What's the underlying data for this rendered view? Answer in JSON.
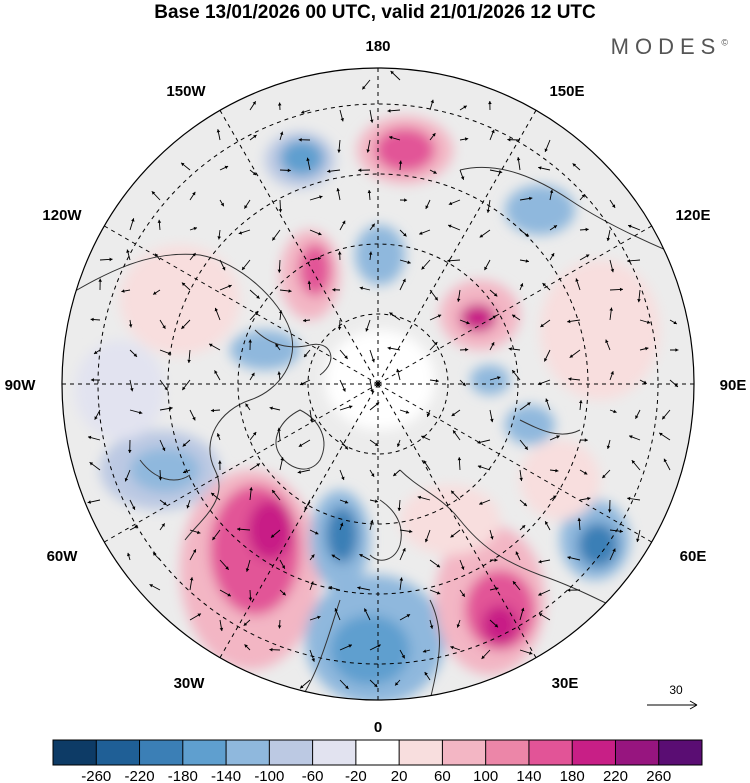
{
  "title": "Base 13/01/2026 00 UTC, valid 21/01/2026 12 UTC",
  "brand": "MODES",
  "brand_mark": "©",
  "longitude_labels": [
    "180",
    "150E",
    "120E",
    "90E",
    "60E",
    "30E",
    "0",
    "30W",
    "60W",
    "90W",
    "120W",
    "150W"
  ],
  "reference_vector": "30",
  "colorbar": {
    "tick_labels": [
      "-260",
      "-220",
      "-180",
      "-140",
      "-100",
      "-60",
      "-20",
      "20",
      "60",
      "100",
      "140",
      "180",
      "220",
      "260"
    ],
    "colors": [
      "#0d3b66",
      "#1f5f96",
      "#3b7fb6",
      "#5f9fcf",
      "#8fb8dd",
      "#bcc9e3",
      "#e2e3f0",
      "#ffffff",
      "#f8dede",
      "#f3b6c4",
      "#ec86a8",
      "#e25497",
      "#c81f86",
      "#97157f",
      "#5a0d73"
    ]
  },
  "colors": {
    "land_background": "#ececec",
    "coast": "#333333",
    "grid": "#000000"
  }
}
